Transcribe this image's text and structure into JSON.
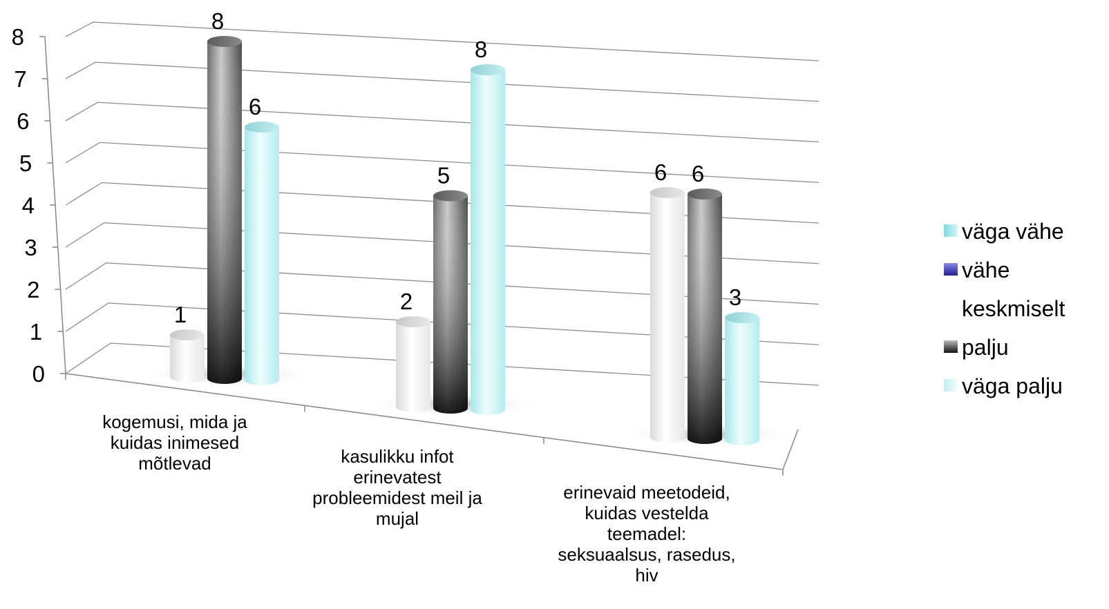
{
  "chart_data": {
    "type": "bar",
    "ylim": [
      0,
      8
    ],
    "yticks": [
      "0",
      "1",
      "2",
      "3",
      "4",
      "5",
      "6",
      "7",
      "8"
    ],
    "grid": true,
    "legend_position": "right",
    "categories": [
      "kogemusi, mida ja kuidas inimesed mõtlevad",
      "kasulikku infot erinevatest probleemidest meil ja mujal",
      "erinevaid meetodeid, kuidas vestelda teemadel: seksuaalsus, rasedus, hiv"
    ],
    "category_lines": [
      [
        "kogemusi, mida ja",
        "kuidas inimesed",
        "mõtlevad"
      ],
      [
        "kasulikku infot",
        "erinevatest",
        "probleemidest meil ja",
        "mujal"
      ],
      [
        "erinevaid meetodeid,",
        "kuidas vestelda",
        "teemadel:",
        "seksuaalsus, rasedus,",
        "hiv"
      ]
    ],
    "series": [
      {
        "name": "väga vähe",
        "values": [
          null,
          null,
          null
        ],
        "color": "#8fe3e8"
      },
      {
        "name": "vähe",
        "values": [
          null,
          null,
          null
        ],
        "color": "#3a3ab8"
      },
      {
        "name": "keskmiselt",
        "values": [
          1,
          2,
          6
        ],
        "color": "#f4f4f4"
      },
      {
        "name": "palju",
        "values": [
          8,
          5,
          6
        ],
        "color": "#555555"
      },
      {
        "name": "väga palju",
        "values": [
          6,
          8,
          3
        ],
        "color": "#c9f4f6"
      }
    ]
  }
}
